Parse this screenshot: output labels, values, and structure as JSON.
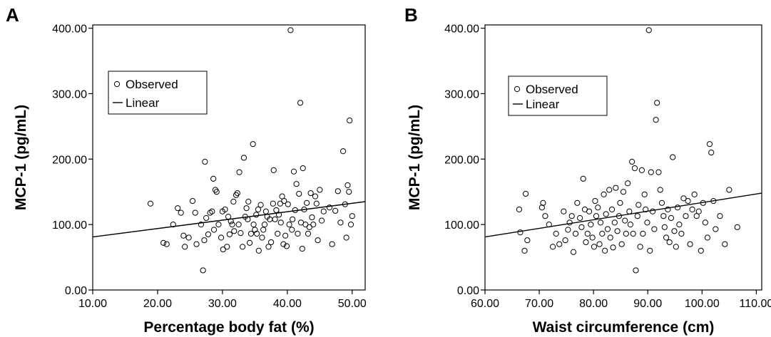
{
  "chart_data": [
    {
      "type": "scatter",
      "panel_label": "A",
      "xlabel": "Percentage body fat (%)",
      "ylabel": "MCP-1 (pg/mL)",
      "xlim": [
        10,
        52
      ],
      "ylim": [
        0,
        405
      ],
      "x_ticks": [
        "10.00",
        "20.00",
        "30.00",
        "40.00",
        "50.00"
      ],
      "y_ticks": [
        "0.00",
        "100.00",
        "200.00",
        "300.00",
        "400.00"
      ],
      "legend": {
        "placement": "top-left",
        "observed_label": "Observed",
        "linear_label": "Linear"
      },
      "fit_line": {
        "x": [
          10,
          52
        ],
        "y": [
          81,
          135
        ]
      },
      "series": [
        {
          "name": "Observed",
          "points": [
            [
              18.9,
              132
            ],
            [
              20.9,
              72
            ],
            [
              21.4,
              70
            ],
            [
              22.4,
              100
            ],
            [
              23.1,
              125
            ],
            [
              23.6,
              118
            ],
            [
              24,
              83
            ],
            [
              24.2,
              66
            ],
            [
              24.8,
              80
            ],
            [
              25.4,
              136
            ],
            [
              25.8,
              118
            ],
            [
              26,
              70
            ],
            [
              26.7,
              100
            ],
            [
              27,
              30
            ],
            [
              27.2,
              76
            ],
            [
              27.3,
              196
            ],
            [
              27.5,
              110
            ],
            [
              27.8,
              85
            ],
            [
              28.1,
              118
            ],
            [
              28.4,
              120
            ],
            [
              28.6,
              170
            ],
            [
              28.7,
              92
            ],
            [
              28.9,
              153
            ],
            [
              29.1,
              150
            ],
            [
              29.4,
              100
            ],
            [
              29.8,
              80
            ],
            [
              30,
              120
            ],
            [
              30.1,
              62
            ],
            [
              30.4,
              123
            ],
            [
              30.7,
              66
            ],
            [
              30.9,
              112
            ],
            [
              31.1,
              85
            ],
            [
              31.3,
              105
            ],
            [
              31.5,
              100
            ],
            [
              31.7,
              135
            ],
            [
              31.8,
              90
            ],
            [
              32.1,
              145
            ],
            [
              32.3,
              148
            ],
            [
              32.5,
              100
            ],
            [
              32.6,
              180
            ],
            [
              32.8,
              87
            ],
            [
              33.1,
              66
            ],
            [
              33.3,
              202
            ],
            [
              33.5,
              112
            ],
            [
              33.7,
              125
            ],
            [
              33.9,
              108
            ],
            [
              34,
              135
            ],
            [
              34.2,
              72
            ],
            [
              34.4,
              86
            ],
            [
              34.7,
              223
            ],
            [
              34.8,
              100
            ],
            [
              35,
              92
            ],
            [
              35.2,
              115
            ],
            [
              35.3,
              86
            ],
            [
              35.5,
              123
            ],
            [
              35.6,
              60
            ],
            [
              35.9,
              130
            ],
            [
              36.1,
              80
            ],
            [
              36.3,
              92
            ],
            [
              36.5,
              100
            ],
            [
              36.7,
              120
            ],
            [
              36.9,
              112
            ],
            [
              37.1,
              66
            ],
            [
              37.3,
              108
            ],
            [
              37.5,
              73
            ],
            [
              37.8,
              132
            ],
            [
              37.9,
              183
            ],
            [
              38.1,
              108
            ],
            [
              38.3,
              122
            ],
            [
              38.5,
              86
            ],
            [
              38.7,
              115
            ],
            [
              38.9,
              132
            ],
            [
              39,
              103
            ],
            [
              39.2,
              143
            ],
            [
              39.4,
              70
            ],
            [
              39.5,
              136
            ],
            [
              39.7,
              83
            ],
            [
              39.9,
              67
            ],
            [
              40.1,
              131
            ],
            [
              40.3,
              100
            ],
            [
              40.5,
              397
            ],
            [
              40.7,
              92
            ],
            [
              40.8,
              108
            ],
            [
              41,
              181
            ],
            [
              41.2,
              122
            ],
            [
              41.4,
              162
            ],
            [
              41.6,
              86
            ],
            [
              41.8,
              147
            ],
            [
              42,
              286
            ],
            [
              42.1,
              103
            ],
            [
              42.3,
              63
            ],
            [
              42.4,
              186
            ],
            [
              42.6,
              123
            ],
            [
              42.8,
              100
            ],
            [
              43,
              133
            ],
            [
              43.2,
              86
            ],
            [
              43.4,
              96
            ],
            [
              43.6,
              148
            ],
            [
              43.8,
              111
            ],
            [
              44,
              100
            ],
            [
              44.3,
              143
            ],
            [
              44.5,
              132
            ],
            [
              44.7,
              76
            ],
            [
              45,
              153
            ],
            [
              45.3,
              106
            ],
            [
              45.6,
              120
            ],
            [
              46.5,
              126
            ],
            [
              46.9,
              70
            ],
            [
              47.4,
              121
            ],
            [
              47.8,
              151
            ],
            [
              48.2,
              103
            ],
            [
              48.6,
              212
            ],
            [
              48.9,
              131
            ],
            [
              49.1,
              80
            ],
            [
              49.3,
              160
            ],
            [
              49.5,
              150
            ],
            [
              49.6,
              259
            ],
            [
              49.8,
              100
            ],
            [
              50,
              113
            ]
          ]
        }
      ]
    },
    {
      "type": "scatter",
      "panel_label": "B",
      "xlabel": "Waist circumference (cm)",
      "ylabel": "MCP-1 (pg/mL)",
      "xlim": [
        60,
        111
      ],
      "ylim": [
        0,
        405
      ],
      "x_ticks": [
        "60.00",
        "70.00",
        "80.00",
        "90.00",
        "100.00",
        "110.00"
      ],
      "y_ticks": [
        "0.00",
        "100.00",
        "200.00",
        "300.00",
        "400.00"
      ],
      "legend": {
        "placement": "top-left",
        "observed_label": "Observed",
        "linear_label": "Linear"
      },
      "fit_line": {
        "x": [
          60,
          111
        ],
        "y": [
          81,
          148
        ]
      },
      "series": [
        {
          "name": "Observed",
          "points": [
            [
              66.3,
              123
            ],
            [
              66.5,
              88
            ],
            [
              67.3,
              60
            ],
            [
              67.5,
              147
            ],
            [
              67.8,
              76
            ],
            [
              70.5,
              126
            ],
            [
              70.7,
              133
            ],
            [
              71.1,
              113
            ],
            [
              71.8,
              100
            ],
            [
              72.5,
              66
            ],
            [
              73.1,
              86
            ],
            [
              73.7,
              70
            ],
            [
              74.5,
              120
            ],
            [
              74.8,
              76
            ],
            [
              75.3,
              92
            ],
            [
              75.6,
              103
            ],
            [
              76,
              113
            ],
            [
              76.3,
              58
            ],
            [
              76.7,
              86
            ],
            [
              77,
              133
            ],
            [
              77.5,
              110
            ],
            [
              77.8,
              96
            ],
            [
              78.1,
              170
            ],
            [
              78.4,
              123
            ],
            [
              78.6,
              73
            ],
            [
              78.9,
              86
            ],
            [
              79.2,
              120
            ],
            [
              79.5,
              100
            ],
            [
              79.8,
              80
            ],
            [
              80.1,
              66
            ],
            [
              80.3,
              136
            ],
            [
              80.5,
              113
            ],
            [
              80.8,
              126
            ],
            [
              81.1,
              70
            ],
            [
              81.3,
              103
            ],
            [
              81.6,
              86
            ],
            [
              81.9,
              146
            ],
            [
              82.1,
              60
            ],
            [
              82.3,
              116
            ],
            [
              82.6,
              93
            ],
            [
              82.9,
              153
            ],
            [
              83.1,
              80
            ],
            [
              83.4,
              123
            ],
            [
              83.6,
              65
            ],
            [
              83.9,
              103
            ],
            [
              84.1,
              156
            ],
            [
              84.4,
              90
            ],
            [
              84.7,
              113
            ],
            [
              84.9,
              133
            ],
            [
              85.2,
              70
            ],
            [
              85.5,
              150
            ],
            [
              85.8,
              106
            ],
            [
              86,
              86
            ],
            [
              86.3,
              163
            ],
            [
              86.6,
              120
            ],
            [
              86.8,
              100
            ],
            [
              87.1,
              196
            ],
            [
              87.3,
              86
            ],
            [
              87.6,
              186
            ],
            [
              87.8,
              30
            ],
            [
              88.1,
              113
            ],
            [
              88.3,
              130
            ],
            [
              88.6,
              66
            ],
            [
              88.9,
              183
            ],
            [
              89.1,
              86
            ],
            [
              89.4,
              146
            ],
            [
              89.6,
              123
            ],
            [
              89.9,
              103
            ],
            [
              90.2,
              397
            ],
            [
              90.4,
              60
            ],
            [
              90.6,
              180
            ],
            [
              90.9,
              120
            ],
            [
              91.2,
              93
            ],
            [
              91.5,
              260
            ],
            [
              91.7,
              286
            ],
            [
              92,
              180
            ],
            [
              92.3,
              153
            ],
            [
              92.6,
              133
            ],
            [
              92.9,
              113
            ],
            [
              93.1,
              96
            ],
            [
              93.4,
              80
            ],
            [
              93.7,
              123
            ],
            [
              94,
              73
            ],
            [
              94.3,
              110
            ],
            [
              94.6,
              203
            ],
            [
              94.9,
              90
            ],
            [
              95.2,
              66
            ],
            [
              95.5,
              126
            ],
            [
              95.8,
              100
            ],
            [
              96.2,
              86
            ],
            [
              96.6,
              140
            ],
            [
              97,
              113
            ],
            [
              97.4,
              136
            ],
            [
              97.8,
              70
            ],
            [
              98.2,
              123
            ],
            [
              98.6,
              146
            ],
            [
              99,
              113
            ],
            [
              99.4,
              120
            ],
            [
              99.8,
              60
            ],
            [
              100.2,
              133
            ],
            [
              100.6,
              103
            ],
            [
              101,
              80
            ],
            [
              101.4,
              223
            ],
            [
              101.7,
              210
            ],
            [
              102.1,
              136
            ],
            [
              102.5,
              93
            ],
            [
              103.3,
              113
            ],
            [
              104.2,
              70
            ],
            [
              105,
              153
            ],
            [
              106.5,
              96
            ]
          ]
        }
      ]
    }
  ]
}
